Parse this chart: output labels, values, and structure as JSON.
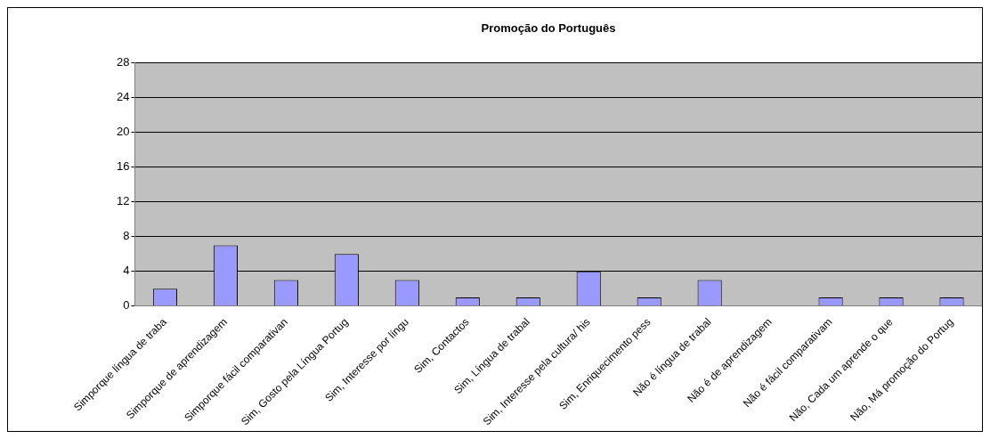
{
  "chart_data": {
    "type": "bar",
    "title": "Promoção do Português",
    "categories": [
      "Simporque língua de traba",
      "Simporque de aprendizagem",
      "Simporque fácil comparativan",
      "Sim, Gosto pela Língua Portug",
      "Sim, Interesse por língu",
      "Sim, Contactos",
      "Sim, Língua de trabal",
      "Sim, Interesse pela cultura/ his",
      "Sim, Enriquecimento pess",
      "Não é língua de trabal",
      "Não é de aprendizagem",
      "Não é fácil comparativam",
      "Não, Cada um aprende o que",
      "Não, Má promoção do Portug"
    ],
    "values": [
      2,
      7,
      3,
      6,
      3,
      1,
      1,
      4,
      1,
      3,
      0,
      1,
      1,
      1
    ],
    "color": "#9999ff",
    "ylim": [
      0,
      28
    ],
    "yticks": [
      0,
      4,
      8,
      12,
      16,
      20,
      24,
      28
    ],
    "grid": "y",
    "legend": false
  }
}
